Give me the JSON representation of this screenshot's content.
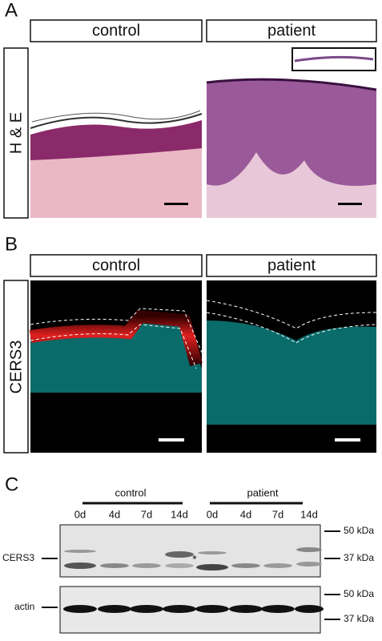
{
  "panels": [
    {
      "label": "A",
      "stain": "H & E",
      "columns": [
        "control",
        "patient"
      ]
    },
    {
      "label": "B",
      "stain": "CERS3",
      "columns": [
        "control",
        "patient"
      ]
    }
  ],
  "blot": {
    "label": "C",
    "groups": [
      "control",
      "patient"
    ],
    "lanes": [
      "0d",
      "4d",
      "7d",
      "14d",
      "0d",
      "4d",
      "7d",
      "14d"
    ],
    "markers_top": [
      "50 kDa",
      "37 kDa"
    ],
    "markers_bottom": [
      "50 kDa",
      "37 kDa"
    ],
    "rows": [
      "CERS3",
      "actin"
    ],
    "asterisk": "*"
  }
}
